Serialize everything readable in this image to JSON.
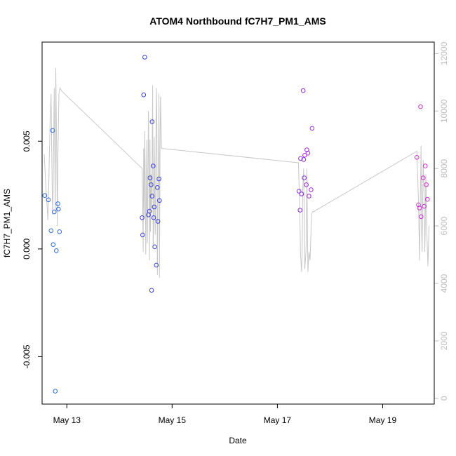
{
  "chart_data": {
    "type": "scatter",
    "title": "ATOM4 Northbound fC7H7_PM1_AMS",
    "xlabel": "Date",
    "ylabel": "fC7H7_PM1_AMS",
    "xlim": [
      12.53,
      19.98
    ],
    "ylim": [
      -0.0072,
      0.0096
    ],
    "y2lim": [
      -200,
      12400
    ],
    "x_ticks": [
      {
        "value": 13,
        "label": "May 13"
      },
      {
        "value": 15,
        "label": "May 15"
      },
      {
        "value": 17,
        "label": "May 17"
      },
      {
        "value": 19,
        "label": "May 19"
      }
    ],
    "y_ticks": [
      {
        "value": -0.005,
        "label": "-0.005"
      },
      {
        "value": 0.0,
        "label": "0.000"
      },
      {
        "value": 0.005,
        "label": "0.005"
      }
    ],
    "y2_ticks": [
      {
        "value": 0,
        "label": "0"
      },
      {
        "value": 2000,
        "label": "2000"
      },
      {
        "value": 4000,
        "label": "4000"
      },
      {
        "value": 6000,
        "label": "6000"
      },
      {
        "value": 8000,
        "label": "8000"
      },
      {
        "value": 10000,
        "label": "10000"
      },
      {
        "value": 12000,
        "label": "12000"
      }
    ],
    "points": [
      {
        "x": 12.58,
        "y": 0.00248,
        "color": "#2f6ad8"
      },
      {
        "x": 12.65,
        "y": 0.00228,
        "color": "#2f6ad8"
      },
      {
        "x": 12.7,
        "y": 0.00085,
        "color": "#2f6ad8"
      },
      {
        "x": 12.73,
        "y": 0.0055,
        "color": "#2f6ad8"
      },
      {
        "x": 12.74,
        "y": 0.0002,
        "color": "#2f6ad8"
      },
      {
        "x": 12.76,
        "y": 0.00172,
        "color": "#2f6ad8"
      },
      {
        "x": 12.78,
        "y": -0.0066,
        "color": "#2f6ad8"
      },
      {
        "x": 12.8,
        "y": -8e-05,
        "color": "#2f6ad8"
      },
      {
        "x": 12.83,
        "y": 0.0021,
        "color": "#2f6ad8"
      },
      {
        "x": 12.84,
        "y": 0.00185,
        "color": "#2f6ad8"
      },
      {
        "x": 12.86,
        "y": 0.0008,
        "color": "#2f6ad8"
      },
      {
        "x": 14.43,
        "y": 0.00145,
        "color": "#3a3fe0"
      },
      {
        "x": 14.44,
        "y": 0.00065,
        "color": "#3a3fe0"
      },
      {
        "x": 14.46,
        "y": 0.00715,
        "color": "#3a3fe0"
      },
      {
        "x": 14.48,
        "y": 0.0089,
        "color": "#3a3fe0"
      },
      {
        "x": 14.55,
        "y": 0.00158,
        "color": "#3a3fe0"
      },
      {
        "x": 14.57,
        "y": 0.00175,
        "color": "#3a3fe0"
      },
      {
        "x": 14.58,
        "y": 0.0033,
        "color": "#3a3fe0"
      },
      {
        "x": 14.6,
        "y": 0.00298,
        "color": "#3a3fe0"
      },
      {
        "x": 14.61,
        "y": -0.00192,
        "color": "#3a3fe0"
      },
      {
        "x": 14.62,
        "y": 0.0059,
        "color": "#3a3fe0"
      },
      {
        "x": 14.62,
        "y": 0.00245,
        "color": "#3a3fe0"
      },
      {
        "x": 14.64,
        "y": 0.00385,
        "color": "#3a3fe0"
      },
      {
        "x": 14.65,
        "y": 0.00145,
        "color": "#3a3fe0"
      },
      {
        "x": 14.66,
        "y": 0.00195,
        "color": "#3a3fe0"
      },
      {
        "x": 14.67,
        "y": 0.0001,
        "color": "#3a3fe0"
      },
      {
        "x": 14.7,
        "y": -0.00075,
        "color": "#3a3fe0"
      },
      {
        "x": 14.72,
        "y": 0.00285,
        "color": "#3a3fe0"
      },
      {
        "x": 14.73,
        "y": 0.00128,
        "color": "#3a3fe0"
      },
      {
        "x": 14.75,
        "y": 0.00325,
        "color": "#3a3fe0"
      },
      {
        "x": 14.76,
        "y": 0.00225,
        "color": "#3a3fe0"
      },
      {
        "x": 17.41,
        "y": 0.00268,
        "color": "#8a2be2"
      },
      {
        "x": 17.43,
        "y": 0.0018,
        "color": "#8a2be2"
      },
      {
        "x": 17.44,
        "y": 0.0042,
        "color": "#8a2be2"
      },
      {
        "x": 17.46,
        "y": 0.00255,
        "color": "#8a2be2"
      },
      {
        "x": 17.49,
        "y": 0.00735,
        "color": "#8a2be2"
      },
      {
        "x": 17.5,
        "y": 0.00415,
        "color": "#8a2be2"
      },
      {
        "x": 17.51,
        "y": 0.0033,
        "color": "#8a2be2"
      },
      {
        "x": 17.52,
        "y": 0.00435,
        "color": "#a22ad8"
      },
      {
        "x": 17.55,
        "y": 0.00298,
        "color": "#a22ad8"
      },
      {
        "x": 17.56,
        "y": 0.0046,
        "color": "#a22ad8"
      },
      {
        "x": 17.58,
        "y": 0.00445,
        "color": "#a22ad8"
      },
      {
        "x": 17.6,
        "y": 0.00245,
        "color": "#a22ad8"
      },
      {
        "x": 17.64,
        "y": 0.00275,
        "color": "#a22ad8"
      },
      {
        "x": 17.66,
        "y": 0.0056,
        "color": "#a22ad8"
      },
      {
        "x": 19.65,
        "y": 0.00425,
        "color": "#d030d0"
      },
      {
        "x": 19.68,
        "y": 0.00205,
        "color": "#d030d0"
      },
      {
        "x": 19.7,
        "y": 0.0019,
        "color": "#d030d0"
      },
      {
        "x": 19.72,
        "y": 0.0066,
        "color": "#d030d0"
      },
      {
        "x": 19.73,
        "y": 0.0015,
        "color": "#d030d0"
      },
      {
        "x": 19.77,
        "y": 0.0033,
        "color": "#d030d0"
      },
      {
        "x": 19.79,
        "y": 0.00198,
        "color": "#d030d0"
      },
      {
        "x": 19.81,
        "y": 0.00385,
        "color": "#d030d0"
      },
      {
        "x": 19.83,
        "y": 0.00298,
        "color": "#d030d0"
      },
      {
        "x": 19.85,
        "y": 0.0023,
        "color": "#d030d0"
      }
    ],
    "line_series": {
      "name": "secondary",
      "axis": "right",
      "color": "#c8c8c8",
      "x": [
        12.57,
        12.6,
        12.62,
        12.64,
        12.66,
        12.68,
        12.7,
        12.72,
        12.73,
        12.74,
        12.76,
        12.77,
        12.78,
        12.79,
        12.81,
        12.82,
        12.83,
        12.85,
        12.87,
        12.9,
        14.43,
        14.44,
        14.45,
        14.46,
        14.47,
        14.48,
        14.49,
        14.5,
        14.51,
        14.52,
        14.53,
        14.54,
        14.55,
        14.56,
        14.57,
        14.58,
        14.59,
        14.6,
        14.61,
        14.62,
        14.63,
        14.64,
        14.65,
        14.66,
        14.67,
        14.68,
        14.69,
        14.7,
        14.71,
        14.72,
        14.73,
        14.74,
        14.75,
        14.76,
        14.77,
        14.78,
        14.8,
        17.4,
        17.42,
        17.44,
        17.46,
        17.47,
        17.48,
        17.5,
        17.52,
        17.54,
        17.55,
        17.56,
        17.58,
        17.6,
        17.62,
        17.65,
        17.67,
        17.69,
        19.65,
        19.68,
        19.7,
        19.71,
        19.72,
        19.73,
        19.74,
        19.75,
        19.77,
        19.79,
        19.8,
        19.81,
        19.82,
        19.84,
        19.86,
        19.88
      ],
      "y": [
        8500,
        7400,
        6800,
        6200,
        7800,
        9500,
        10600,
        7500,
        6400,
        7200,
        10800,
        8800,
        6500,
        11500,
        8200,
        6000,
        8400,
        10600,
        10800,
        10700,
        8000,
        6900,
        5100,
        8700,
        6300,
        9300,
        7500,
        5000,
        7000,
        9000,
        5400,
        7300,
        10000,
        8200,
        4800,
        9000,
        5800,
        7800,
        6600,
        8100,
        10900,
        5300,
        6000,
        9100,
        7200,
        5700,
        8200,
        10800,
        9600,
        4300,
        6800,
        7800,
        10600,
        4200,
        8500,
        10500,
        8700,
        8200,
        7000,
        5000,
        4400,
        5100,
        7200,
        8000,
        4500,
        5000,
        5600,
        8000,
        4400,
        5100,
        4800,
        6400,
        6500,
        6500,
        8600,
        6900,
        4800,
        6100,
        7500,
        8800,
        5800,
        5100,
        8300,
        7000,
        5100,
        6000,
        7800,
        5700,
        4600,
        6000
      ]
    }
  }
}
